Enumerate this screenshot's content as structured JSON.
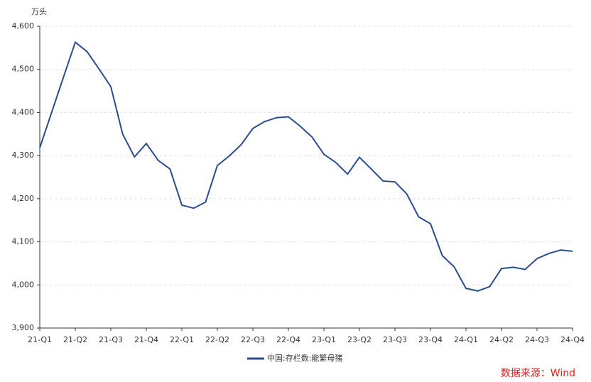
{
  "chart_data": {
    "type": "line",
    "y_unit": "万头",
    "source": "数据来源：Wind",
    "categories": [
      "21-Q1",
      null,
      null,
      "21-Q2",
      null,
      null,
      "21-Q3",
      null,
      null,
      "21-Q4",
      null,
      null,
      "22-Q1",
      null,
      null,
      "22-Q2",
      null,
      null,
      "22-Q3",
      null,
      null,
      "22-Q4",
      null,
      null,
      "23-Q1",
      null,
      null,
      "23-Q2",
      null,
      null,
      "23-Q3",
      null,
      null,
      "23-Q4",
      null,
      null,
      "24-Q1",
      null,
      null,
      "24-Q2",
      null,
      null,
      "24-Q3",
      null,
      null,
      "24-Q4"
    ],
    "series": [
      {
        "name": "中国:存栏数:能繁母猪",
        "color": "#2b4c8c",
        "values": [
          4318,
          4400,
          4482,
          4563,
          4541,
          4501,
          4460,
          4350,
          4297,
          4328,
          4289,
          4269,
          4185,
          4178,
          4192,
          4277,
          4299,
          4325,
          4363,
          4379,
          4388,
          4390,
          4368,
          4343,
          4303,
          4284,
          4257,
          4296,
          4269,
          4241,
          4239,
          4211,
          4158,
          4142,
          4068,
          4042,
          3992,
          3986,
          3996,
          4038,
          4041,
          4036,
          4061,
          4073,
          4081,
          4078
        ]
      }
    ],
    "ylim": [
      3900,
      4600
    ],
    "yticks": [
      {
        "value": 3900,
        "label": "3,900"
      },
      {
        "value": 4000,
        "label": "4,000"
      },
      {
        "value": 4100,
        "label": "4,100"
      },
      {
        "value": 4200,
        "label": "4,200"
      },
      {
        "value": 4300,
        "label": "4,300"
      },
      {
        "value": 4400,
        "label": "4,400"
      },
      {
        "value": 4500,
        "label": "4,500"
      },
      {
        "value": 4600,
        "label": "4,600"
      }
    ],
    "grid": true
  }
}
